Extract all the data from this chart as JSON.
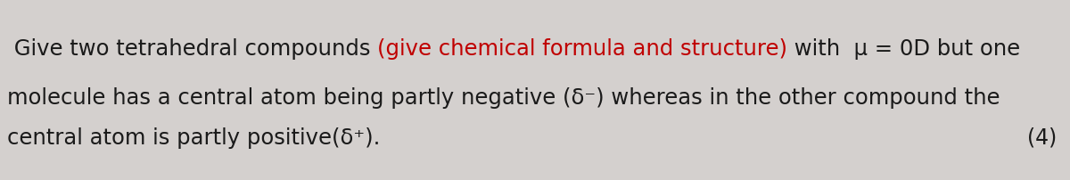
{
  "background_color": "#d4d0ce",
  "text_color_black": "#1a1a1a",
  "text_color_red": "#c00000",
  "line1_black1": " Give two tetrahedral compounds ",
  "line1_red": "(give chemical formula and structure)",
  "line1_black2": " with  μ = 0D but one",
  "line2": "molecule has a central atom being partly negative (δ⁻) whereas in the other compound the",
  "line3": "central atom is partly positive(δ⁺).",
  "mark": "(4)",
  "font_size": 17.5,
  "mark_font_size": 17
}
